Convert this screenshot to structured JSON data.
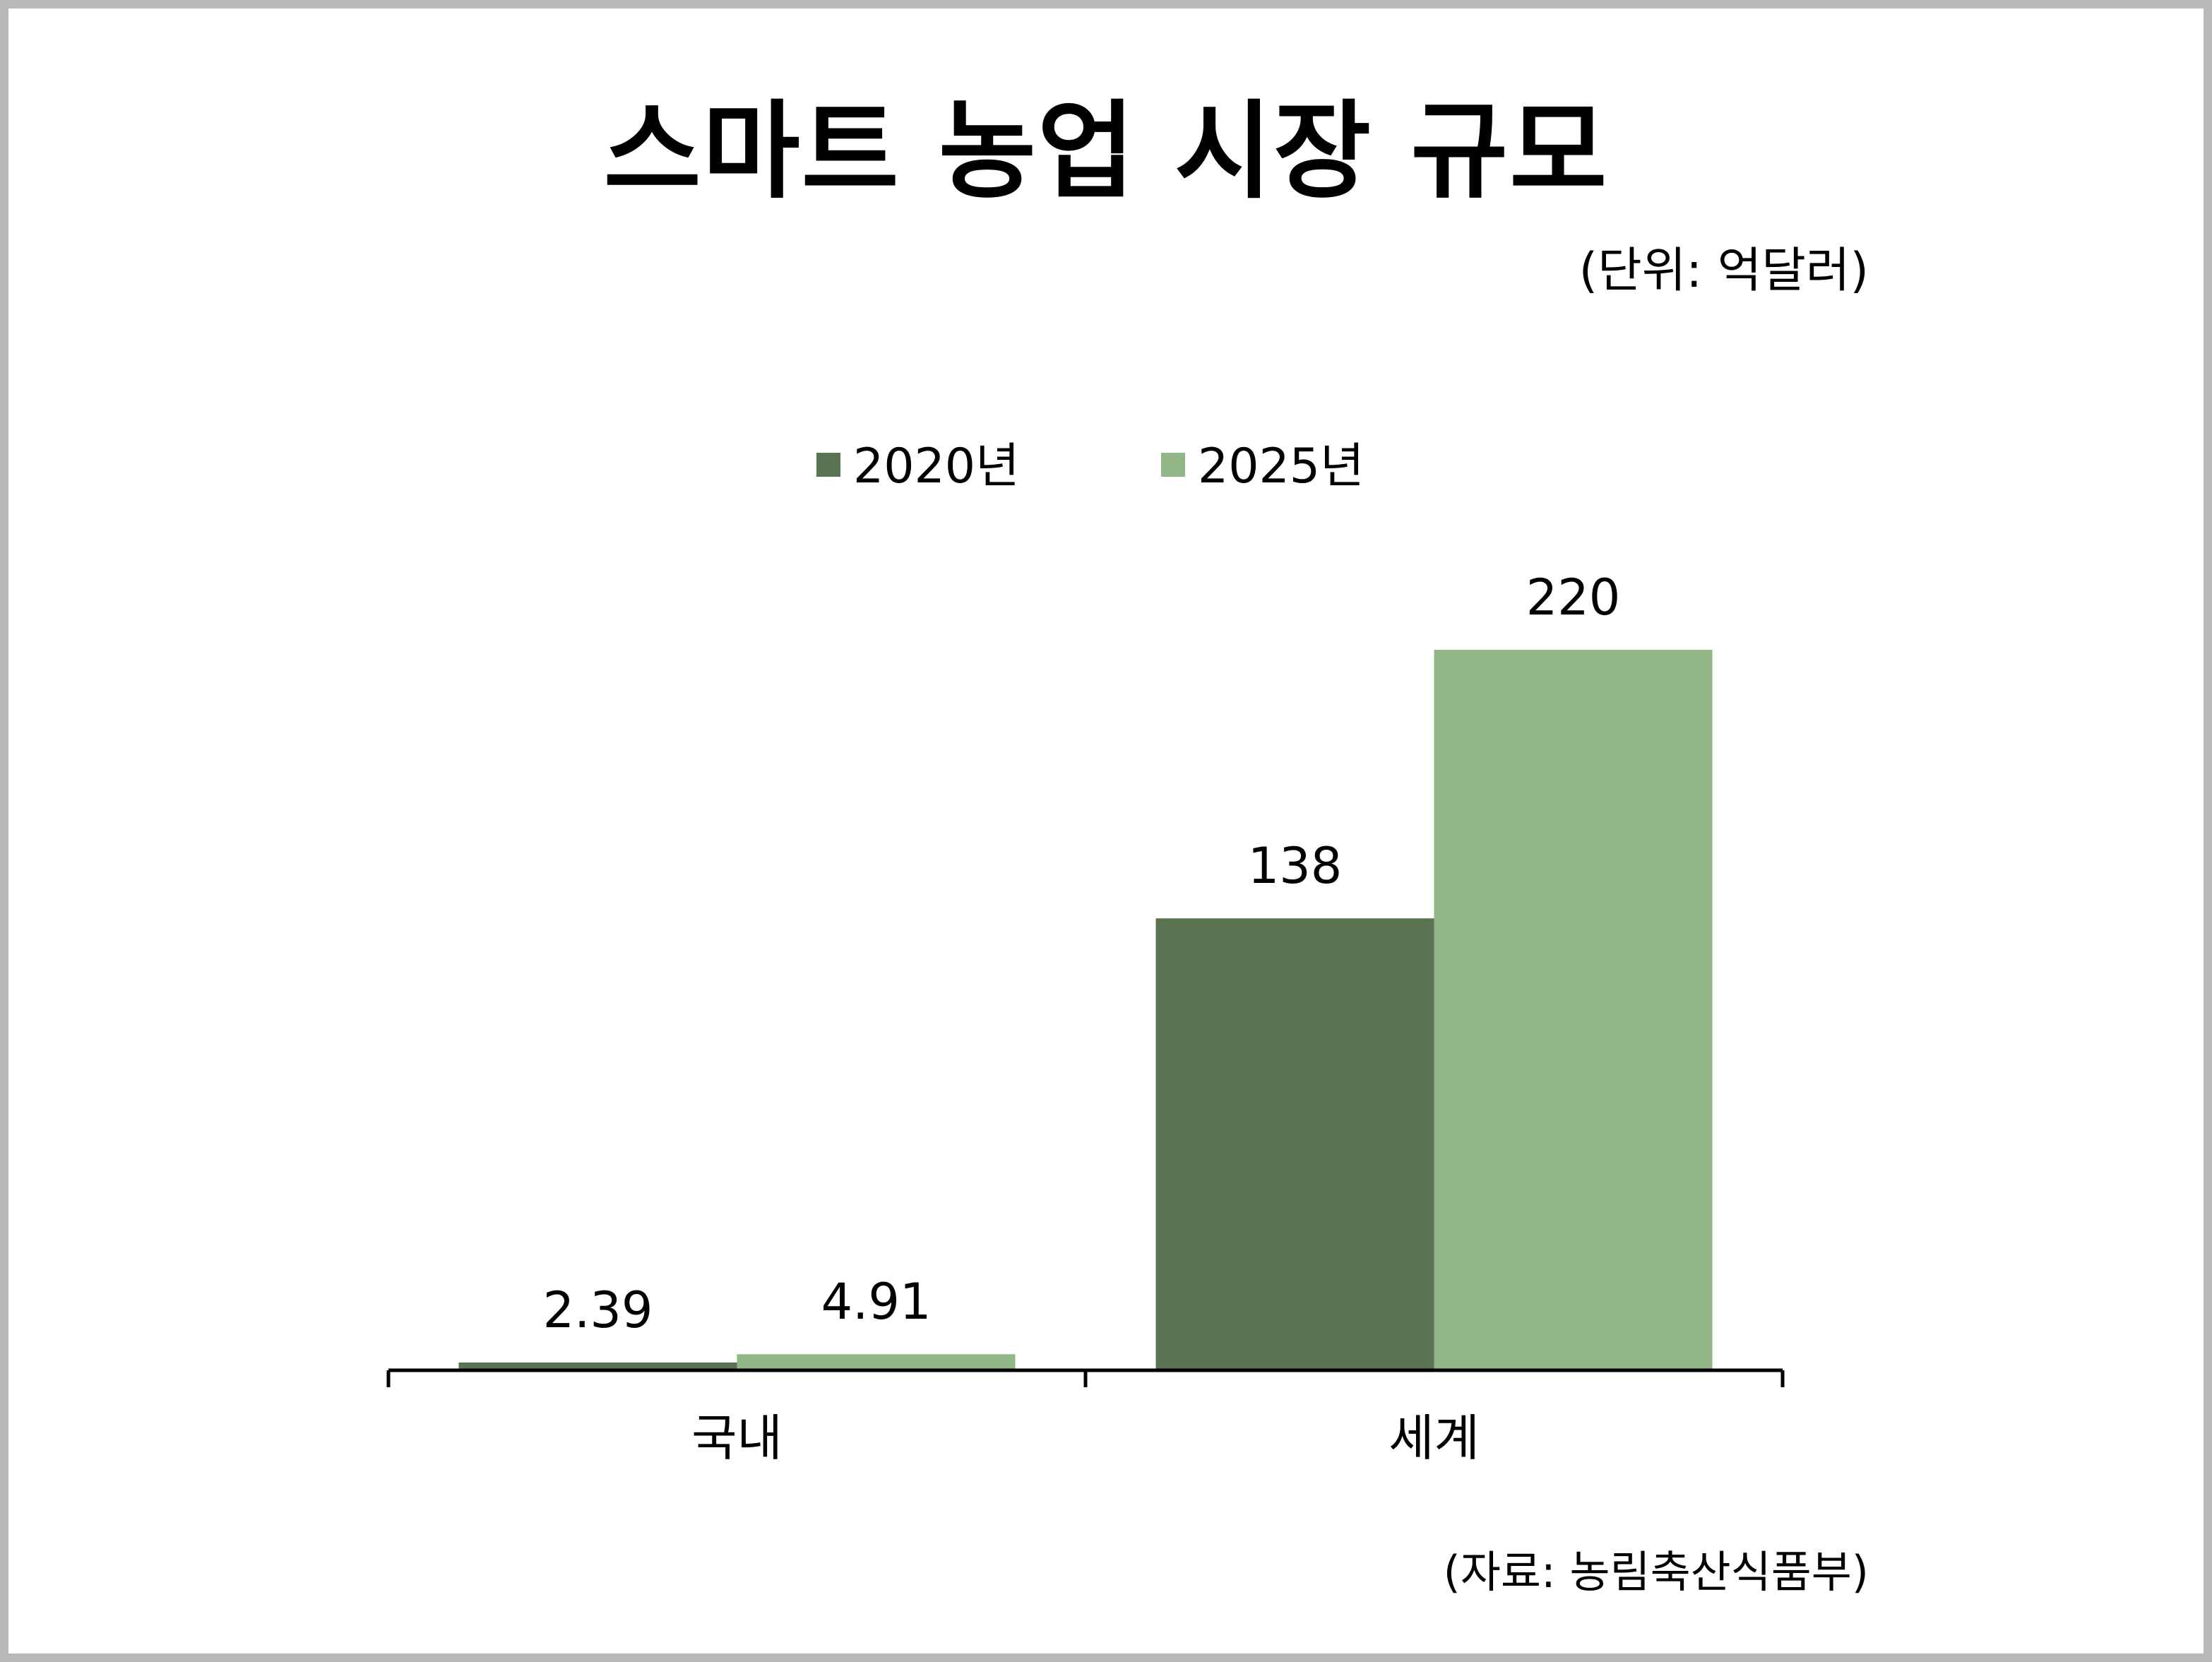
{
  "title": "스마트 농업 시장 규모",
  "unit_note": "(단위: 억달러)",
  "source_note": "(자료: 농림축산식품부)",
  "colors": {
    "series_2020": "#5a7352",
    "series_2025": "#93b686",
    "axis": "#000000",
    "frame": "#b8b8b8"
  },
  "chart_data": {
    "type": "bar",
    "title": "스마트 농업 시장 규모",
    "categories": [
      "국내",
      "세계"
    ],
    "series": [
      {
        "name": "2020년",
        "values": [
          2.39,
          138
        ]
      },
      {
        "name": "2025년",
        "values": [
          4.91,
          220
        ]
      }
    ],
    "data_labels": [
      [
        "2.39",
        "138"
      ],
      [
        "4.91",
        "220"
      ]
    ],
    "ylim": [
      0,
      220
    ],
    "legend_position": "top-center",
    "grid": false,
    "unit": "억달러"
  }
}
